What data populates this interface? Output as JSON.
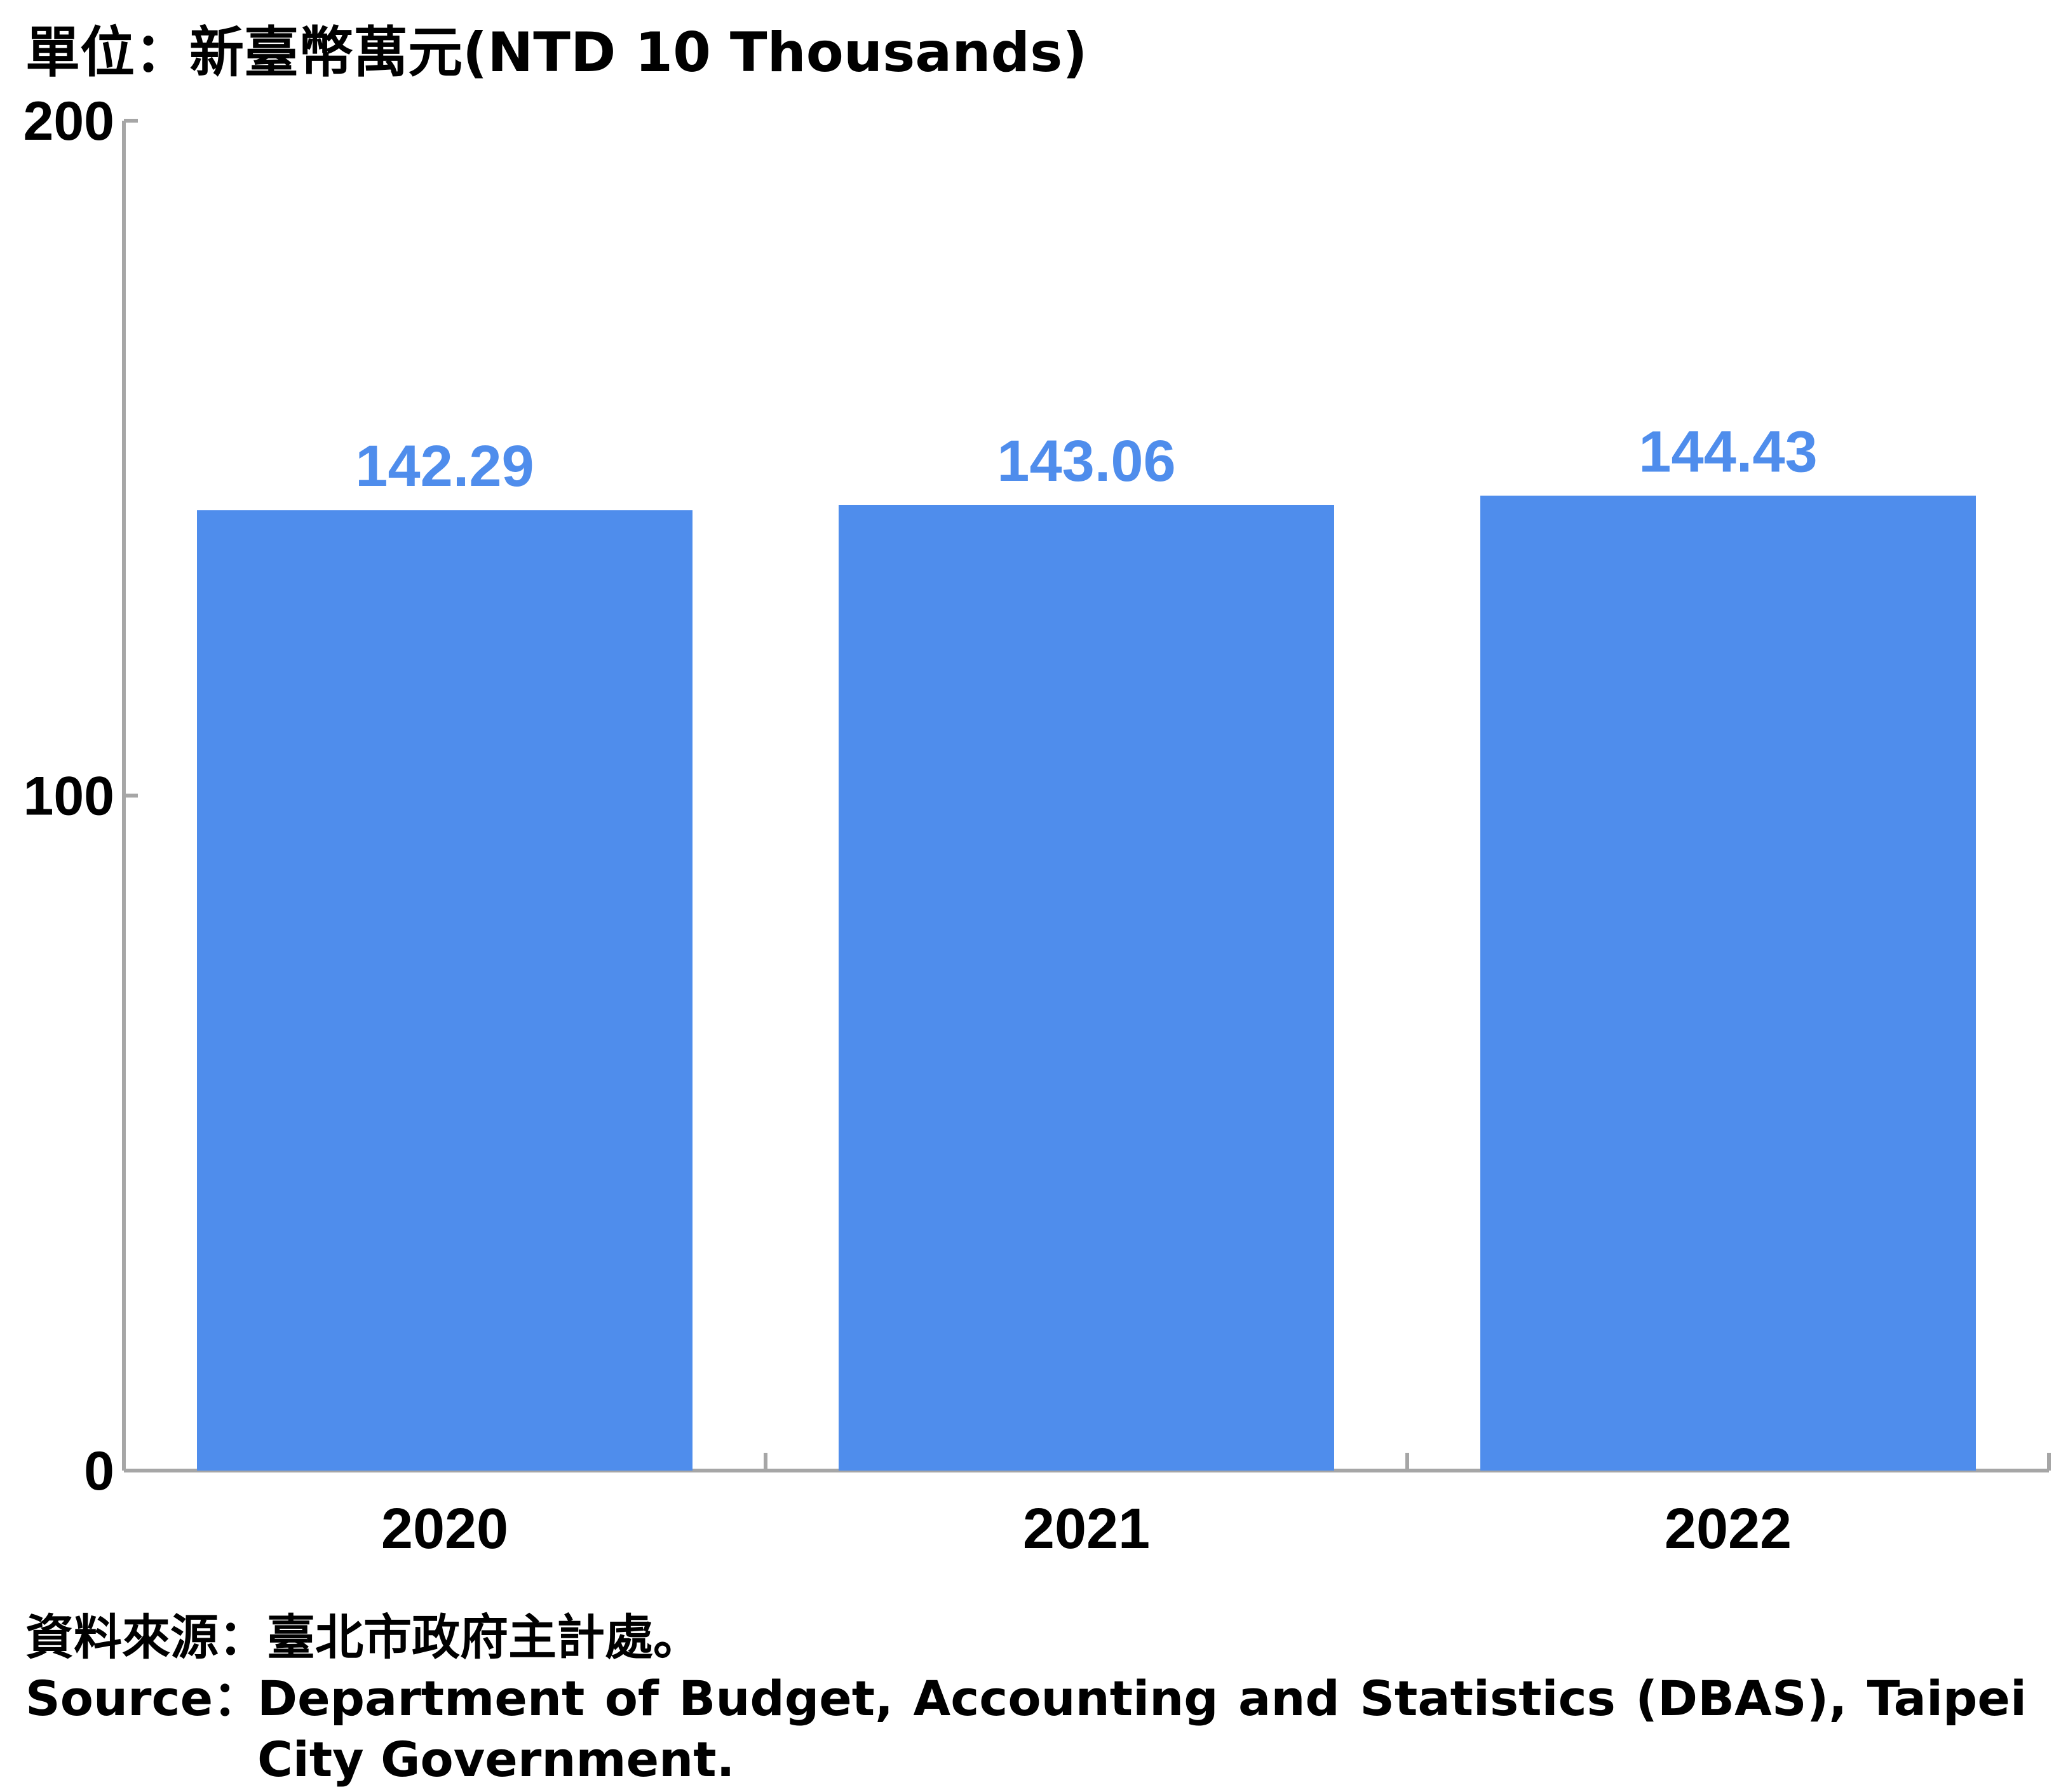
{
  "unit_label": "單位：新臺幣萬元(NTD 10 Thousands)",
  "colors": {
    "bar": "#4f8dec",
    "value_label": "#4f8dec",
    "axis": "#a6a6a6",
    "text": "#000000"
  },
  "chart_data": {
    "type": "bar",
    "categories": [
      "2020",
      "2021",
      "2022"
    ],
    "values": [
      142.29,
      143.06,
      144.43
    ],
    "value_labels": [
      "142.29",
      "143.06",
      "144.43"
    ],
    "ylim": [
      0,
      200
    ],
    "yticks": [
      "0",
      "100",
      "200"
    ],
    "xlabel": "",
    "ylabel": "",
    "grid": false,
    "legend": "none"
  },
  "source": {
    "zh": "資料來源：臺北市政府主計處。",
    "en_prefix": "Source：",
    "en_text": "Department of Budget, Accounting and Statistics (DBAS), Taipei City Government."
  }
}
